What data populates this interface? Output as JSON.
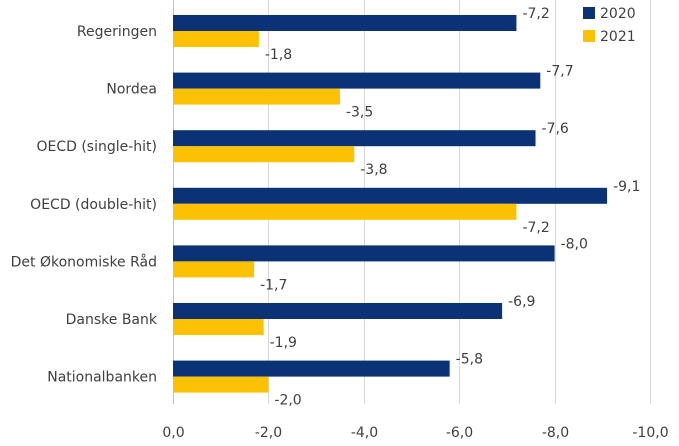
{
  "chart_data": {
    "type": "bar",
    "orientation": "horizontal",
    "title": "",
    "xlabel": "",
    "ylabel": "",
    "categories": [
      "Regeringen",
      "Nordea",
      "OECD (single-hit)",
      "OECD (double-hit)",
      "Det Økonomiske Råd",
      "Danske Bank",
      "Nationalbanken"
    ],
    "series": [
      {
        "name": "2020",
        "color": "#0a3275",
        "values": [
          -7.2,
          -7.7,
          -7.6,
          -9.1,
          -8.0,
          -6.9,
          -5.8
        ],
        "labels": [
          "-7,2",
          "-7,7",
          "-7,6",
          "-9,1",
          "-8,0",
          "-6,9",
          "-5,8"
        ]
      },
      {
        "name": "2021",
        "color": "#fbc102",
        "values": [
          -1.8,
          -3.5,
          -3.8,
          -7.2,
          -1.7,
          -1.9,
          -2.0
        ],
        "labels": [
          "-1,8",
          "-3,5",
          "-3,8",
          "-7,2",
          "-1,7",
          "-1,9",
          "-2,0"
        ]
      }
    ],
    "xlim": [
      0,
      -10
    ],
    "xticks": [
      0,
      -2,
      -4,
      -6,
      -8,
      -10
    ],
    "xtick_labels": [
      "0,0",
      "-2,0",
      "-4,0",
      "-6,0",
      "-8,0",
      "-10,0"
    ],
    "grid": true,
    "legend_position": "top-right"
  }
}
